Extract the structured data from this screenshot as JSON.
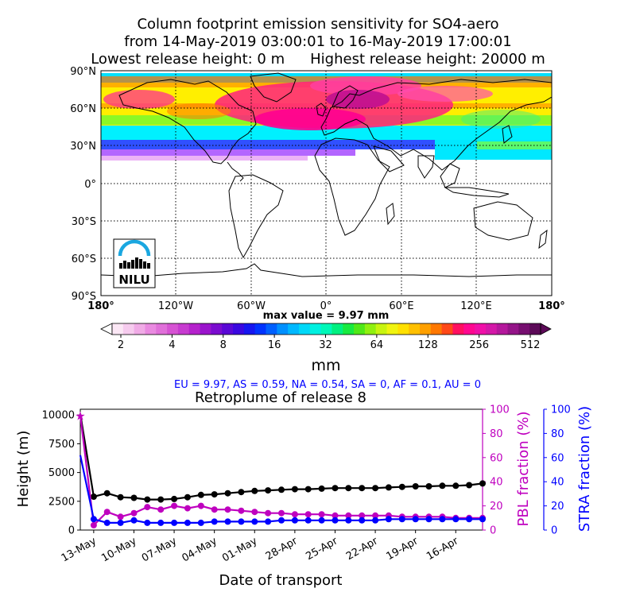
{
  "header": {
    "title_line1": "Column footprint emission sensitivity for SO4-aero",
    "title_line2": "from 14-May-2019 03:00:01 to 16-May-2019 17:00:01",
    "lowest_release": "Lowest release height: 0 m",
    "highest_release": "Highest release height: 20000 m"
  },
  "map": {
    "lat_labels": [
      "90°N",
      "60°N",
      "30°N",
      "0°",
      "30°S",
      "60°S",
      "90°S"
    ],
    "lon_labels": [
      "180°",
      "120°W",
      "60°W",
      "0°",
      "60°E",
      "120°E",
      "180°"
    ],
    "max_value_label": "max value = 9.97 mm",
    "logo_text": "NILU"
  },
  "colorbar": {
    "ticks": [
      "2",
      "4",
      "8",
      "16",
      "32",
      "64",
      "128",
      "256",
      "512"
    ],
    "unit": "mm",
    "colors": [
      "#fbe7f5",
      "#f6cbee",
      "#f0abe6",
      "#e98ae0",
      "#e070d9",
      "#d653d3",
      "#c73bd0",
      "#b522cc",
      "#9a14cc",
      "#7a0ccf",
      "#5a08d6",
      "#3a08e0",
      "#1616f0",
      "#0033ff",
      "#0060ff",
      "#0090ff",
      "#00b8ff",
      "#00d8f8",
      "#00f0e0",
      "#00f8b8",
      "#00f080",
      "#18ea40",
      "#50e818",
      "#90f010",
      "#c8f410",
      "#f0f410",
      "#ffe000",
      "#ffc000",
      "#ffa000",
      "#ff7800",
      "#ff4818",
      "#ff1060",
      "#ff0890",
      "#f010a8",
      "#d418a8",
      "#b4189c",
      "#941488",
      "#760e70",
      "#5c0a58"
    ]
  },
  "region_summary": "EU = 9.97,  AS = 0.59,  NA = 0.54,  SA = 0,  AF = 0.1,  AU = 0",
  "chart_data": {
    "type": "line",
    "title": "Retroplume of release 8",
    "xlabel": "Date of transport",
    "ylabel": "Height (m)",
    "y2label": "PBL fraction (%)",
    "y3label": "STRA fraction (%)",
    "ylim": [
      0,
      10500
    ],
    "y2lim": [
      0,
      100
    ],
    "y3lim": [
      0,
      100
    ],
    "yticks": [
      "0",
      "2500",
      "5000",
      "7500",
      "10000"
    ],
    "y2ticks": [
      "0",
      "20",
      "40",
      "60",
      "80",
      "100"
    ],
    "y3ticks": [
      "0",
      "20",
      "40",
      "60",
      "80",
      "100"
    ],
    "xticks": [
      "13-May",
      "10-May",
      "07-May",
      "04-May",
      "01-May",
      "28-Apr",
      "25-Apr",
      "22-Apr",
      "19-Apr",
      "16-Apr"
    ],
    "x_days_before_release": [
      0,
      1,
      2,
      3,
      4,
      5,
      6,
      7,
      8,
      9,
      10,
      11,
      12,
      13,
      14,
      15,
      16,
      17,
      18,
      19,
      20,
      21,
      22,
      23,
      24,
      25,
      26,
      27,
      28,
      29,
      30
    ],
    "series": [
      {
        "name": "Height (m)",
        "color": "#000000",
        "axis": "y",
        "values": [
          10100,
          2900,
          3200,
          2850,
          2800,
          2650,
          2650,
          2700,
          2850,
          3050,
          3100,
          3200,
          3300,
          3400,
          3450,
          3500,
          3550,
          3550,
          3600,
          3650,
          3650,
          3650,
          3650,
          3700,
          3750,
          3800,
          3800,
          3850,
          3850,
          3900,
          4050
        ]
      },
      {
        "name": "PBL fraction (%)",
        "color": "#bf00bf",
        "axis": "y2",
        "values": [
          95,
          4,
          15,
          11,
          14,
          19,
          17,
          20,
          18,
          20,
          17,
          17,
          16,
          15,
          14,
          14,
          13,
          13,
          13,
          12,
          12,
          12,
          12,
          12,
          11,
          11,
          11,
          11,
          10,
          10,
          10
        ]
      },
      {
        "name": "STRA fraction (%)",
        "color": "#0000ff",
        "axis": "y3",
        "values": [
          62,
          9,
          6,
          6,
          8,
          6,
          6,
          6,
          6,
          6,
          7,
          7,
          7,
          7,
          7,
          8,
          8,
          8,
          8,
          8,
          8,
          8,
          8,
          9,
          9,
          9,
          9,
          9,
          9,
          9,
          9
        ]
      }
    ]
  }
}
